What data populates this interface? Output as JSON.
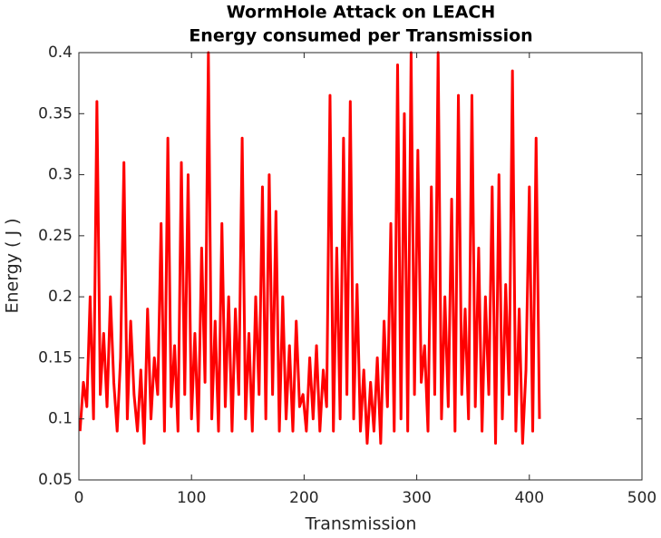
{
  "chart_data": {
    "type": "line",
    "title": "WormHole Attack on LEACH",
    "subtitle": "Energy consumed per Transmission",
    "x_label": "Transmission",
    "y_label": "Energy ( J )",
    "x": [
      1,
      4,
      7,
      10,
      13,
      16,
      19,
      22,
      25,
      28,
      31,
      34,
      37,
      40,
      43,
      46,
      49,
      52,
      55,
      58,
      61,
      64,
      67,
      70,
      73,
      76,
      79,
      82,
      85,
      88,
      91,
      94,
      97,
      100,
      103,
      106,
      109,
      112,
      115,
      118,
      121,
      124,
      127,
      130,
      133,
      136,
      139,
      142,
      145,
      148,
      151,
      154,
      157,
      160,
      163,
      166,
      169,
      172,
      175,
      178,
      181,
      184,
      187,
      190,
      193,
      196,
      199,
      202,
      205,
      208,
      211,
      214,
      217,
      220,
      223,
      226,
      229,
      232,
      235,
      238,
      241,
      244,
      247,
      250,
      253,
      256,
      259,
      262,
      265,
      268,
      271,
      274,
      277,
      280,
      283,
      286,
      289,
      292,
      295,
      298,
      301,
      304,
      307,
      310,
      313,
      316,
      319,
      322,
      325,
      328,
      331,
      334,
      337,
      340,
      343,
      346,
      349,
      352,
      355,
      358,
      361,
      364,
      367,
      370,
      373,
      376,
      379,
      382,
      385,
      388,
      391,
      394,
      397,
      400,
      403,
      406,
      409
    ],
    "series": [
      {
        "name": "Energy",
        "color": "#ff0000",
        "values": [
          0.09,
          0.13,
          0.11,
          0.2,
          0.1,
          0.36,
          0.12,
          0.17,
          0.11,
          0.2,
          0.13,
          0.09,
          0.15,
          0.31,
          0.1,
          0.18,
          0.12,
          0.09,
          0.14,
          0.08,
          0.19,
          0.1,
          0.15,
          0.12,
          0.26,
          0.09,
          0.33,
          0.11,
          0.16,
          0.09,
          0.31,
          0.12,
          0.3,
          0.1,
          0.17,
          0.09,
          0.24,
          0.13,
          0.4,
          0.1,
          0.18,
          0.09,
          0.26,
          0.11,
          0.2,
          0.09,
          0.19,
          0.12,
          0.33,
          0.1,
          0.17,
          0.09,
          0.2,
          0.12,
          0.29,
          0.1,
          0.3,
          0.12,
          0.27,
          0.09,
          0.2,
          0.1,
          0.16,
          0.09,
          0.18,
          0.11,
          0.12,
          0.09,
          0.15,
          0.1,
          0.16,
          0.09,
          0.14,
          0.11,
          0.365,
          0.09,
          0.24,
          0.1,
          0.33,
          0.12,
          0.36,
          0.1,
          0.21,
          0.09,
          0.14,
          0.08,
          0.13,
          0.09,
          0.15,
          0.08,
          0.18,
          0.11,
          0.26,
          0.09,
          0.39,
          0.1,
          0.35,
          0.09,
          0.4,
          0.12,
          0.32,
          0.13,
          0.16,
          0.09,
          0.29,
          0.12,
          0.4,
          0.1,
          0.2,
          0.11,
          0.28,
          0.09,
          0.365,
          0.12,
          0.19,
          0.1,
          0.365,
          0.11,
          0.24,
          0.09,
          0.2,
          0.12,
          0.29,
          0.08,
          0.3,
          0.1,
          0.21,
          0.12,
          0.385,
          0.09,
          0.19,
          0.08,
          0.14,
          0.29,
          0.09,
          0.33,
          0.1
        ]
      }
    ],
    "xlim": [
      0,
      500
    ],
    "xticks": [
      0,
      100,
      200,
      300,
      400,
      500
    ],
    "ylim": [
      0.05,
      0.4
    ],
    "yticks": [
      0.05,
      0.1,
      0.15,
      0.2,
      0.25,
      0.3,
      0.35,
      0.4
    ],
    "grid": false
  }
}
